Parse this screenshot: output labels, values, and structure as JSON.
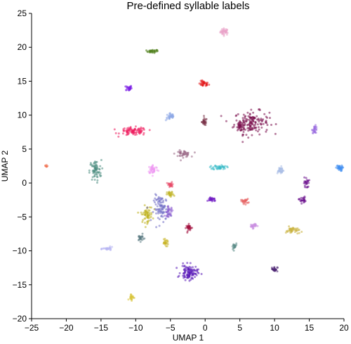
{
  "chart_data": {
    "type": "scatter",
    "title": "Pre-defined syllable labels",
    "xlabel": "UMAP 1",
    "ylabel": "UMAP 2",
    "xlim": [
      -25,
      20
    ],
    "ylim": [
      -20,
      25
    ],
    "xticks": [
      -25,
      -20,
      -15,
      -10,
      -5,
      0,
      5,
      10,
      15,
      20
    ],
    "yticks": [
      -20,
      -15,
      -10,
      -5,
      0,
      5,
      10,
      15,
      20,
      25
    ],
    "grid": false,
    "legend": "none",
    "clusters": [
      {
        "color": "#e9a3c9",
        "x": 2.8,
        "y": 22.3,
        "sx": 0.5,
        "sy": 0.4,
        "n": 40
      },
      {
        "color": "#4d7d17",
        "x": -7.6,
        "y": 19.4,
        "sx": 0.7,
        "sy": 0.2,
        "n": 30
      },
      {
        "color": "#e41a1c",
        "x": -0.2,
        "y": 14.6,
        "sx": 0.6,
        "sy": 0.35,
        "n": 35
      },
      {
        "color": "#7b1fe6",
        "x": -11,
        "y": 14.0,
        "sx": 0.35,
        "sy": 0.35,
        "n": 30
      },
      {
        "color": "#7a0f4c",
        "x": 6.7,
        "y": 8.9,
        "sx": 2.1,
        "sy": 1.4,
        "n": 160
      },
      {
        "color": "#7a0f4c",
        "x": 5.0,
        "y": 8.3,
        "sx": 0.4,
        "sy": 0.5,
        "n": 30
      },
      {
        "color": "#8aa6e6",
        "x": -5.0,
        "y": 9.8,
        "sx": 0.55,
        "sy": 0.5,
        "n": 30
      },
      {
        "color": "#7a3348",
        "x": -0.1,
        "y": 9.0,
        "sx": 0.3,
        "sy": 0.45,
        "n": 30
      },
      {
        "color": "#ee1e5f",
        "x": -10.3,
        "y": 7.6,
        "sx": 1.6,
        "sy": 0.5,
        "n": 90
      },
      {
        "color": "#9a6ee0",
        "x": 15.8,
        "y": 7.9,
        "sx": 0.3,
        "sy": 0.45,
        "n": 30
      },
      {
        "color": "#9b6a86",
        "x": -3.2,
        "y": 4.3,
        "sx": 0.9,
        "sy": 0.4,
        "n": 45
      },
      {
        "color": "#4a8d80",
        "x": -15.8,
        "y": 1.8,
        "sx": 0.7,
        "sy": 1.3,
        "n": 70
      },
      {
        "color": "#f07555",
        "x": -22.9,
        "y": 2.5,
        "sx": 0.2,
        "sy": 0.2,
        "n": 10
      },
      {
        "color": "#ee99f2",
        "x": -7.5,
        "y": 2.0,
        "sx": 0.6,
        "sy": 0.55,
        "n": 45
      },
      {
        "color": "#3bbcc8",
        "x": 2.1,
        "y": 2.3,
        "sx": 0.8,
        "sy": 0.3,
        "n": 45
      },
      {
        "color": "#a9bde6",
        "x": 10.8,
        "y": 1.9,
        "sx": 0.45,
        "sy": 0.4,
        "n": 35
      },
      {
        "color": "#3f8ef0",
        "x": 19.3,
        "y": 2.2,
        "sx": 0.4,
        "sy": 0.35,
        "n": 35
      },
      {
        "color": "#6a0e8c",
        "x": 14.6,
        "y": 0.0,
        "sx": 0.3,
        "sy": 0.7,
        "n": 25
      },
      {
        "color": "#6a0e8c",
        "x": 14.0,
        "y": -2.5,
        "sx": 0.4,
        "sy": 0.4,
        "n": 25
      },
      {
        "color": "#e84a68",
        "x": -5.0,
        "y": -0.3,
        "sx": 0.4,
        "sy": 0.35,
        "n": 25
      },
      {
        "color": "#c0b323",
        "x": -5.0,
        "y": -1.7,
        "sx": 0.4,
        "sy": 0.35,
        "n": 25
      },
      {
        "color": "#6f1ac2",
        "x": 1.0,
        "y": -2.4,
        "sx": 0.5,
        "sy": 0.3,
        "n": 30
      },
      {
        "color": "#e55f5f",
        "x": 5.7,
        "y": -2.7,
        "sx": 0.45,
        "sy": 0.3,
        "n": 25
      },
      {
        "color": "#bfb21f",
        "x": -8.4,
        "y": -4.6,
        "sx": 0.7,
        "sy": 1.0,
        "n": 60
      },
      {
        "color": "#6f6bc4",
        "x": -6.3,
        "y": -3.8,
        "sx": 0.9,
        "sy": 1.6,
        "n": 90
      },
      {
        "color": "#8c5ccf",
        "x": -5.2,
        "y": -4.2,
        "sx": 0.5,
        "sy": 0.6,
        "n": 30
      },
      {
        "color": "#a3103e",
        "x": -2.3,
        "y": -6.6,
        "sx": 0.35,
        "sy": 0.4,
        "n": 30
      },
      {
        "color": "#c98ce0",
        "x": 6.9,
        "y": -6.3,
        "sx": 0.4,
        "sy": 0.3,
        "n": 25
      },
      {
        "color": "#c8b03a",
        "x": 12.6,
        "y": -7.0,
        "sx": 0.8,
        "sy": 0.45,
        "n": 40
      },
      {
        "color": "#5a7a82",
        "x": -9.3,
        "y": -8.1,
        "sx": 0.4,
        "sy": 0.4,
        "n": 25
      },
      {
        "color": "#c8b426",
        "x": -5.7,
        "y": -8.8,
        "sx": 0.35,
        "sy": 0.35,
        "n": 25
      },
      {
        "color": "#b6b4f2",
        "x": -14.0,
        "y": -9.7,
        "sx": 0.6,
        "sy": 0.2,
        "n": 25
      },
      {
        "color": "#5f8e8a",
        "x": 4.2,
        "y": -9.4,
        "sx": 0.3,
        "sy": 0.45,
        "n": 25
      },
      {
        "color": "#5a1ab8",
        "x": -2.3,
        "y": -13.2,
        "sx": 1.0,
        "sy": 0.9,
        "n": 110
      },
      {
        "color": "#4d2573",
        "x": 10.0,
        "y": -12.7,
        "sx": 0.35,
        "sy": 0.3,
        "n": 25
      },
      {
        "color": "#d8c43b",
        "x": -10.6,
        "y": -16.8,
        "sx": 0.3,
        "sy": 0.4,
        "n": 25
      }
    ]
  }
}
